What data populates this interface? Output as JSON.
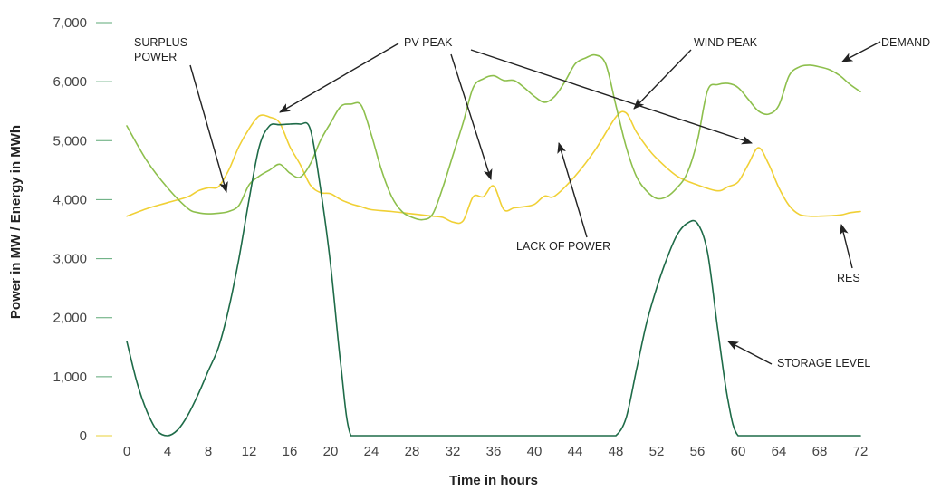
{
  "chart_data": {
    "type": "line",
    "xlabel": "Time in hours",
    "ylabel": "Power in MW / Energy in MWh",
    "xlim": [
      0,
      72
    ],
    "ylim": [
      0,
      7000
    ],
    "x_ticks": [
      0,
      4,
      8,
      12,
      16,
      20,
      24,
      28,
      32,
      36,
      40,
      44,
      48,
      52,
      56,
      60,
      64,
      68,
      72
    ],
    "y_ticks": [
      0,
      1000,
      2000,
      3000,
      4000,
      5000,
      6000,
      7000
    ],
    "y_tick_labels": [
      "0",
      "1,000",
      "2,000",
      "3,000",
      "4,000",
      "5,000",
      "6,000",
      "7,000"
    ],
    "grid": false,
    "colors": {
      "demand": "#8dbf4c",
      "res": "#f0d035",
      "storage": "#1e6b48",
      "axis_tick_zero": "#e8d23a",
      "axis_tick": "#5ea877"
    },
    "series": [
      {
        "key": "demand",
        "x": [
          0,
          2,
          4,
          6,
          7,
          8,
          9,
          10,
          11,
          12,
          13,
          14,
          15,
          16,
          17,
          18,
          19,
          20,
          21,
          22,
          23,
          24,
          25,
          26,
          27,
          28,
          29,
          30,
          31,
          32,
          33,
          34,
          35,
          36,
          37,
          38,
          39,
          40,
          41,
          42,
          43,
          44,
          45,
          46,
          47,
          48,
          49,
          50,
          51,
          52,
          53,
          54,
          55,
          56,
          57,
          58,
          59,
          60,
          61,
          62,
          63,
          64,
          65,
          66,
          67,
          68,
          69,
          70,
          71,
          72
        ],
        "y": [
          5250,
          4650,
          4200,
          3850,
          3780,
          3760,
          3770,
          3800,
          3900,
          4250,
          4400,
          4500,
          4600,
          4450,
          4380,
          4600,
          5000,
          5300,
          5580,
          5620,
          5600,
          5100,
          4500,
          4050,
          3800,
          3700,
          3660,
          3750,
          4200,
          4750,
          5300,
          5900,
          6050,
          6100,
          6020,
          6020,
          5900,
          5750,
          5650,
          5750,
          6000,
          6300,
          6400,
          6450,
          6300,
          5600,
          4900,
          4400,
          4150,
          4020,
          4050,
          4200,
          4450,
          5000,
          5850,
          5950,
          5970,
          5900,
          5700,
          5500,
          5450,
          5600,
          6100,
          6250,
          6280,
          6250,
          6200,
          6100,
          5950,
          5830
        ]
      },
      {
        "key": "res",
        "x": [
          0,
          2,
          4,
          6,
          7,
          8,
          9,
          10,
          11,
          12,
          13,
          14,
          15,
          16,
          17,
          18,
          19,
          20,
          21,
          22,
          23,
          24,
          26,
          28,
          30,
          31,
          32,
          33,
          34,
          35,
          36,
          37,
          38,
          39,
          40,
          41,
          42,
          44,
          46,
          48,
          49,
          50,
          51,
          52,
          54,
          56,
          58,
          59,
          60,
          61,
          62,
          63,
          64,
          65,
          66,
          67,
          68,
          70,
          71,
          72
        ],
        "y": [
          3720,
          3850,
          3950,
          4050,
          4150,
          4200,
          4220,
          4500,
          4900,
          5200,
          5420,
          5400,
          5300,
          4900,
          4600,
          4250,
          4120,
          4100,
          4000,
          3930,
          3880,
          3830,
          3800,
          3760,
          3720,
          3700,
          3620,
          3640,
          4050,
          4050,
          4230,
          3830,
          3860,
          3880,
          3920,
          4060,
          4060,
          4400,
          4850,
          5400,
          5470,
          5150,
          4900,
          4700,
          4400,
          4250,
          4150,
          4220,
          4300,
          4600,
          4880,
          4600,
          4200,
          3900,
          3750,
          3720,
          3720,
          3740,
          3780,
          3800
        ]
      },
      {
        "key": "storage",
        "x": [
          0,
          1,
          2,
          3,
          4,
          5,
          6,
          7,
          8,
          9,
          10,
          11,
          12,
          13,
          14,
          15,
          16,
          17,
          18,
          19,
          20,
          21,
          22,
          24,
          30,
          40,
          47,
          48,
          49,
          50,
          51,
          52,
          53,
          54,
          55,
          56,
          57,
          58,
          59,
          60,
          62,
          66,
          70,
          72
        ],
        "y": [
          1600,
          900,
          400,
          80,
          0,
          100,
          350,
          700,
          1100,
          1500,
          2150,
          3000,
          4000,
          4900,
          5250,
          5270,
          5280,
          5280,
          5200,
          4200,
          2900,
          1200,
          0,
          0,
          0,
          0,
          0,
          0,
          300,
          1100,
          1900,
          2500,
          3000,
          3400,
          3600,
          3600,
          3100,
          1800,
          600,
          0,
          0,
          0,
          0,
          0
        ]
      }
    ],
    "annotations": [
      {
        "lines": [
          "SURPLUS",
          "POWER"
        ]
      },
      {
        "lines": [
          "PV PEAK"
        ]
      },
      {
        "lines": [
          "WIND PEAK"
        ]
      },
      {
        "lines": [
          "DEMAND"
        ]
      },
      {
        "lines": [
          "LACK OF POWER"
        ]
      },
      {
        "lines": [
          "RES"
        ]
      },
      {
        "lines": [
          "STORAGE LEVEL"
        ]
      }
    ]
  }
}
